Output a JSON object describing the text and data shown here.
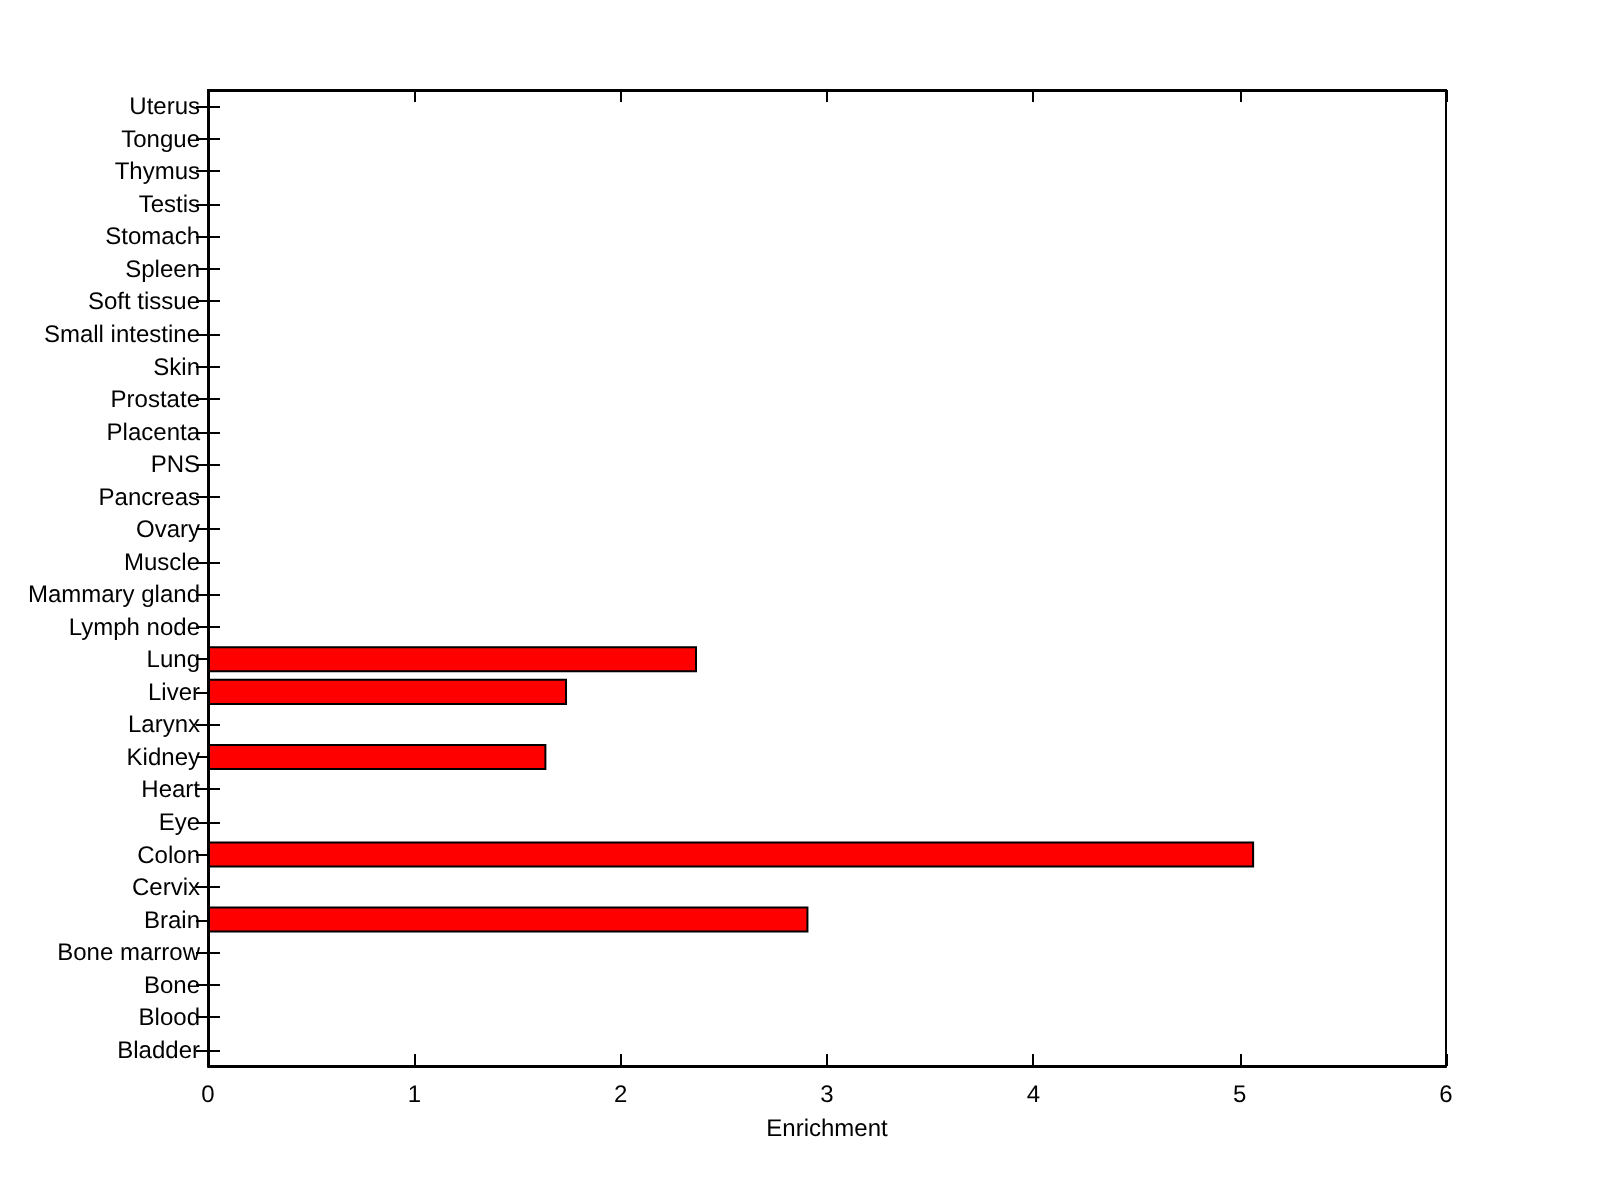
{
  "chart_data": {
    "type": "bar",
    "orientation": "horizontal",
    "xlabel": "Enrichment",
    "categories": [
      "Uterus",
      "Tongue",
      "Thymus",
      "Testis",
      "Stomach",
      "Spleen",
      "Soft tissue",
      "Small intestine",
      "Skin",
      "Prostate",
      "Placenta",
      "PNS",
      "Pancreas",
      "Ovary",
      "Muscle",
      "Mammary gland",
      "Lymph node",
      "Lung",
      "Liver",
      "Larynx",
      "Kidney",
      "Heart",
      "Eye",
      "Colon",
      "Cervix",
      "Brain",
      "Bone marrow",
      "Bone",
      "Blood",
      "Bladder"
    ],
    "values": [
      0,
      0,
      0,
      0,
      0,
      0,
      0,
      0,
      0,
      0,
      0,
      0,
      0,
      0,
      0,
      0,
      0,
      2.37,
      1.74,
      0,
      1.64,
      0,
      0,
      5.07,
      0,
      2.91,
      0,
      0,
      0,
      0
    ],
    "color": "#ff0000",
    "xlim": [
      0,
      6
    ],
    "xticks": [
      0,
      1,
      2,
      3,
      4,
      5,
      6
    ],
    "grid": false
  }
}
